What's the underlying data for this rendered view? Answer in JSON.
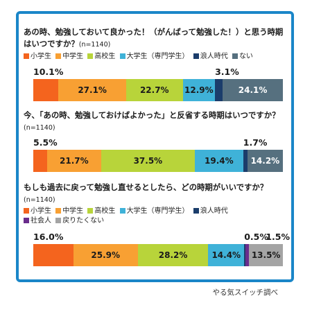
{
  "categories": [
    "小学生",
    "中学生",
    "高校生",
    "大学生（専門学生）",
    "浪人時代",
    "ない",
    "社会人",
    "戻りたくない"
  ],
  "colors": {
    "小学生": "#f4641e",
    "中学生": "#f8a033",
    "高校生": "#b8d43a",
    "大学生（専門学生）": "#3fb2d8",
    "浪人時代": "#1b3d6b",
    "ない": "#56707f",
    "社会人": "#6a2c8c",
    "戻りたくない": "#a4a4a4",
    "frame": "#1a86c8"
  },
  "questions": [
    {
      "text": "あの時、勉強しておいて良かった！（がんばって勉強した！）と思う時期はいつですか？",
      "n": "(n=1140)"
    },
    {
      "text": "今、「あの時、勉強しておけばよかった」と反省する時期はいつですか？",
      "n": "(n=1140)"
    },
    {
      "text": "もしも過去に戻って勉強し直せるとしたら、どの時期がいいですか？",
      "n": "(n=1140)"
    }
  ],
  "credit": "やる気スイッチ調べ",
  "chart_data": [
    {
      "type": "bar",
      "stacked": true,
      "orientation": "horizontal",
      "title": "あの時、勉強しておいて良かった！（がんばって勉強した！）と思う時期はいつですか？(n=1140)",
      "categories": [
        "小学生",
        "中学生",
        "高校生",
        "大学生（専門学生）",
        "浪人時代",
        "ない"
      ],
      "values": [
        10.1,
        27.1,
        22.7,
        12.9,
        3.1,
        24.1
      ],
      "labels": [
        "10.1%",
        "27.1%",
        "22.7%",
        "12.9%",
        "3.1%",
        "24.1%"
      ],
      "unit": "%"
    },
    {
      "type": "bar",
      "stacked": true,
      "orientation": "horizontal",
      "title": "今、「あの時、勉強しておけばよかった」と反省する時期はいつですか？(n=1140)",
      "categories": [
        "小学生",
        "中学生",
        "高校生",
        "大学生（専門学生）",
        "浪人時代",
        "ない"
      ],
      "values": [
        5.5,
        21.7,
        37.5,
        19.4,
        1.7,
        14.2
      ],
      "labels": [
        "5.5%",
        "21.7%",
        "37.5%",
        "19.4%",
        "1.7%",
        "14.2%"
      ],
      "unit": "%"
    },
    {
      "type": "bar",
      "stacked": true,
      "orientation": "horizontal",
      "title": "もしも過去に戻って勉強し直せるとしたら、どの時期がいいですか？(n=1140)",
      "categories": [
        "小学生",
        "中学生",
        "高校生",
        "大学生（専門学生）",
        "社会人",
        "戻りたくない"
      ],
      "values": [
        16.0,
        25.9,
        28.2,
        14.4,
        0.5,
        1.5,
        13.5
      ],
      "series_categories": [
        "小学生",
        "中学生",
        "高校生",
        "大学生（専門学生）",
        "浪人時代",
        "社会人",
        "戻りたくない"
      ],
      "labels": [
        "16.0%",
        "25.9%",
        "28.2%",
        "14.4%",
        "0.5%",
        "1.5%",
        "13.5%"
      ],
      "unit": "%"
    }
  ]
}
